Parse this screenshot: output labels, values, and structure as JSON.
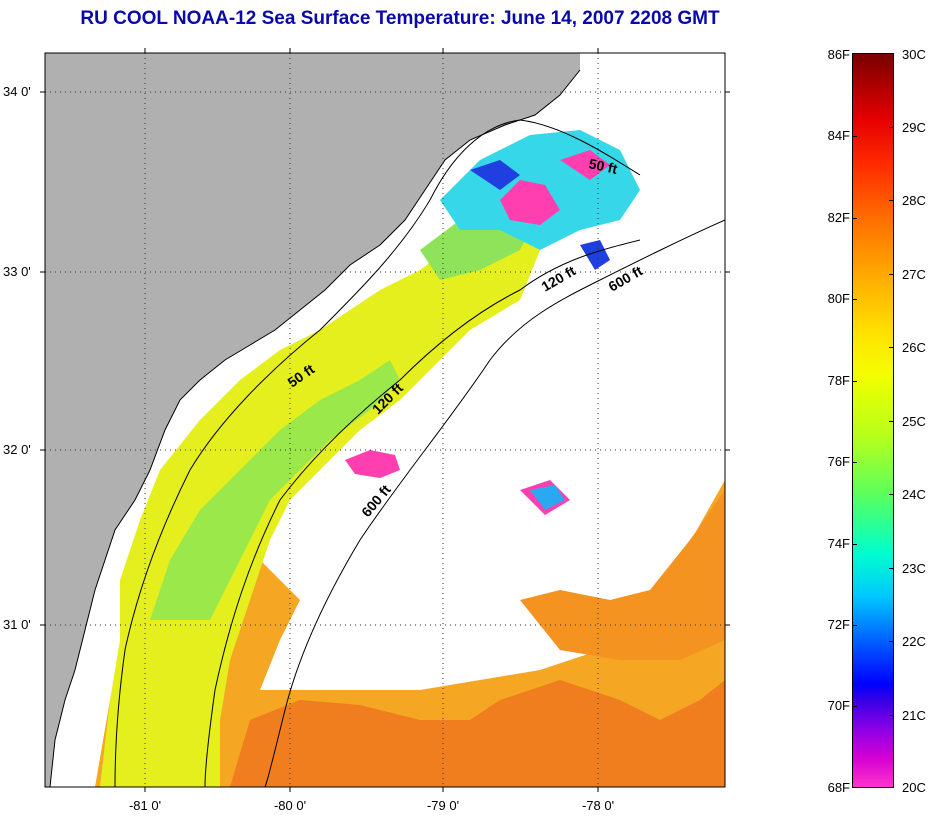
{
  "title": "RU COOL  NOAA-12  Sea Surface Temperature:  June 14, 2007 2208 GMT",
  "map": {
    "lat_labels": [
      "34 0'",
      "33 0'",
      "32 0'",
      "31 0'"
    ],
    "lon_labels": [
      "-81 0'",
      "-80 0'",
      "-79 0'",
      "-78 0'"
    ],
    "contour_labels": [
      "50 ft",
      "50 ft",
      "120 ft",
      "120 ft",
      "600 ft",
      "600 ft"
    ],
    "colors": {
      "land": "#b0b0b0",
      "clouds": "#ffffff"
    }
  },
  "colorbar": {
    "fahrenheit": [
      "86F",
      "84F",
      "82F",
      "80F",
      "78F",
      "76F",
      "74F",
      "72F",
      "70F",
      "68F"
    ],
    "celsius": [
      "30C",
      "29C",
      "28C",
      "27C",
      "26C",
      "25C",
      "24C",
      "23C",
      "22C",
      "21C",
      "20C"
    ]
  }
}
